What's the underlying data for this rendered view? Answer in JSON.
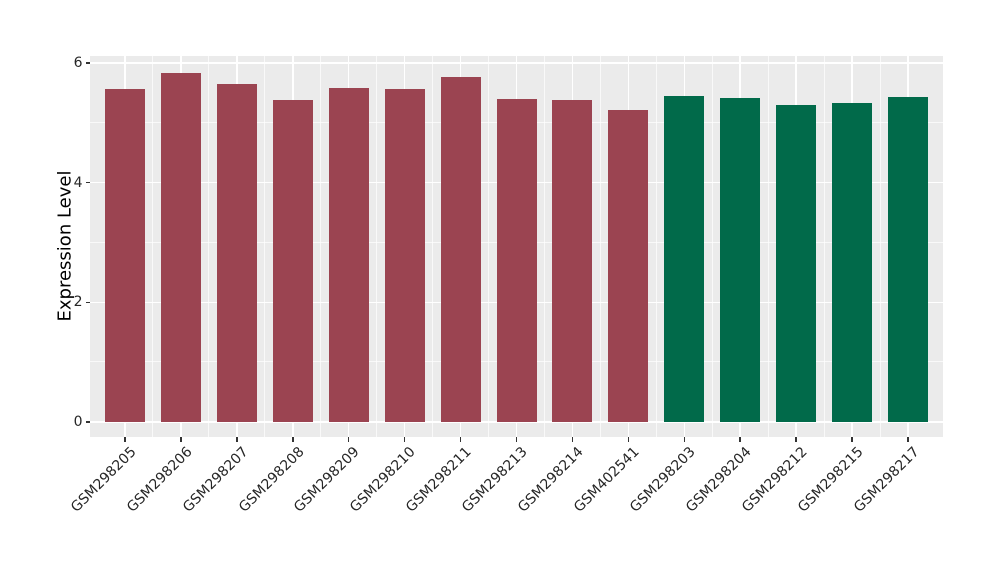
{
  "figure": {
    "background": "#ffffff",
    "panel_background": "#ebebeb",
    "grid_color": "#ffffff",
    "tick_color": "#333333",
    "text_color": "#262626"
  },
  "chart_data": {
    "type": "bar",
    "title": "",
    "xlabel": "",
    "ylabel": "Expression Level",
    "ylim": [
      0,
      6
    ],
    "yticks": [
      0,
      2,
      4,
      6
    ],
    "yticks_minor": [
      1,
      3,
      5
    ],
    "grid": "on",
    "legend": "none",
    "group_colors": {
      "group1": "#9b4451",
      "group2": "#016a4a"
    },
    "categories": [
      "GSM298205",
      "GSM298206",
      "GSM298207",
      "GSM298208",
      "GSM298209",
      "GSM298210",
      "GSM298211",
      "GSM298213",
      "GSM298214",
      "GSM402541",
      "GSM298203",
      "GSM298204",
      "GSM298212",
      "GSM298215",
      "GSM298217"
    ],
    "values": [
      5.57,
      5.83,
      5.65,
      5.39,
      5.59,
      5.57,
      5.77,
      5.4,
      5.38,
      5.21,
      5.45,
      5.41,
      5.3,
      5.33,
      5.44
    ],
    "bar_groups": [
      "group1",
      "group1",
      "group1",
      "group1",
      "group1",
      "group1",
      "group1",
      "group1",
      "group1",
      "group1",
      "group2",
      "group2",
      "group2",
      "group2",
      "group2"
    ]
  }
}
